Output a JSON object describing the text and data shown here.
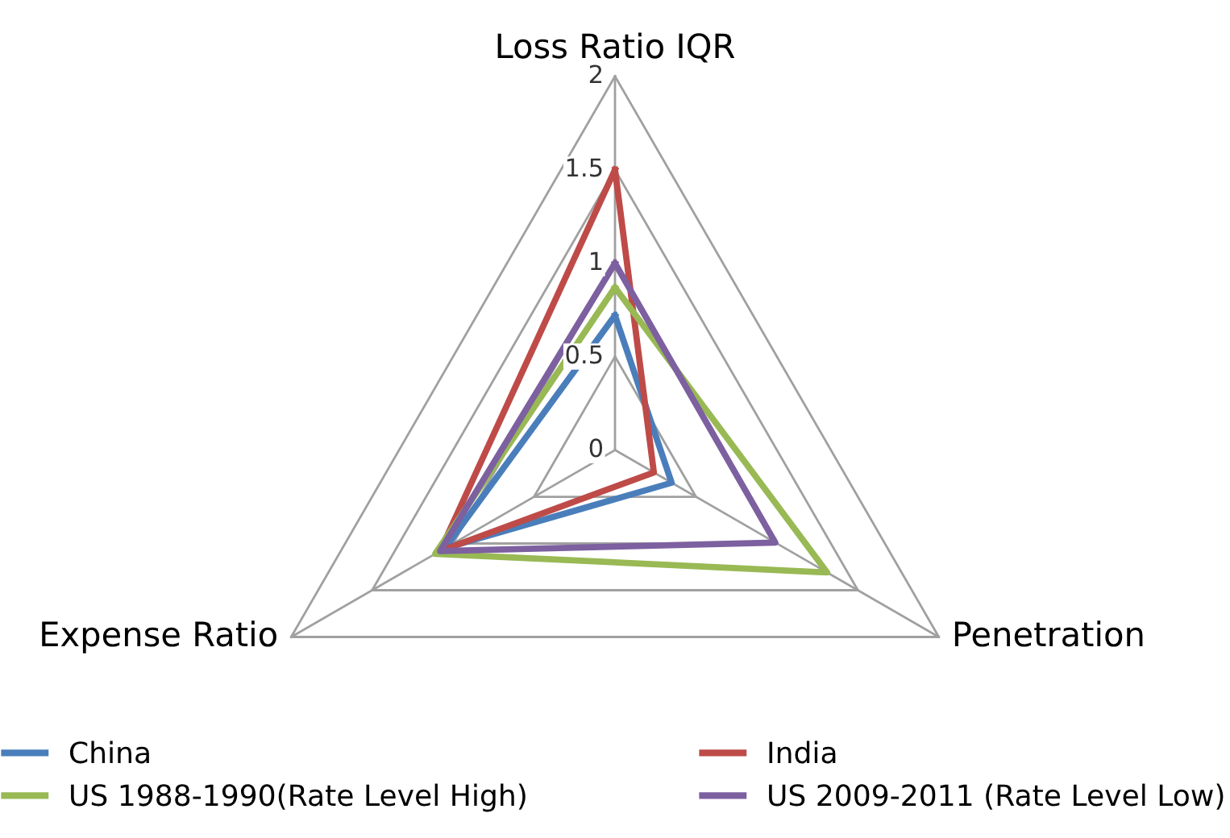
{
  "chart_data": {
    "type": "radar",
    "categories": [
      "Loss Ratio IQR",
      "Penetration",
      "Expense Ratio"
    ],
    "ylim": [
      0,
      2
    ],
    "yticks": [
      0,
      0.5,
      1,
      1.5,
      2
    ],
    "grid": true,
    "legend": "bottom",
    "marker": "none",
    "line_style": "solid",
    "series": [
      {
        "name": "China",
        "color": "#4a7ebb",
        "values": [
          0.72,
          0.35,
          1.05
        ]
      },
      {
        "name": "India",
        "color": "#be4b48",
        "values": [
          1.5,
          0.24,
          1.08
        ]
      },
      {
        "name": "US 1988-1990(Rate Level High)",
        "color": "#98b954",
        "values": [
          0.87,
          1.31,
          1.11
        ]
      },
      {
        "name": "US 2009-2011 (Rate Level Low)",
        "color": "#7d60a0",
        "values": [
          1.0,
          0.99,
          1.08
        ]
      }
    ]
  }
}
